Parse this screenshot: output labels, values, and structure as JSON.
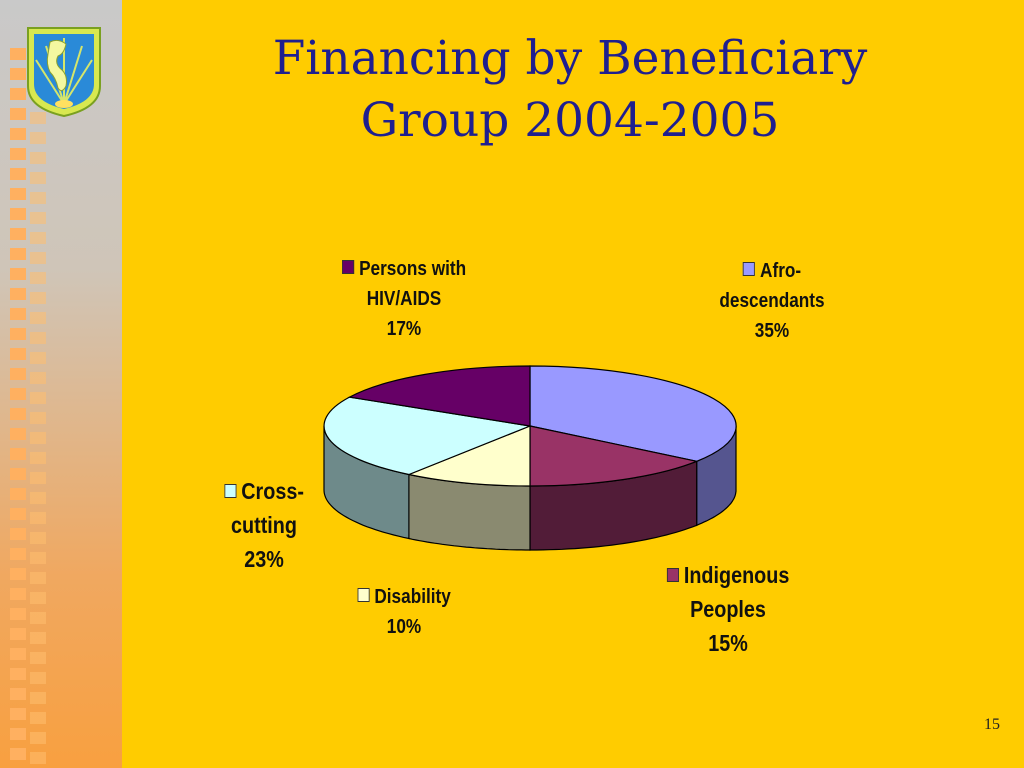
{
  "slide": {
    "title_line1": "Financing by Beneficiary",
    "title_line2": "Group  2004-2005",
    "page_number": "15"
  },
  "colors": {
    "background": "#ffcc00",
    "title": "#1f1f8f"
  },
  "icons": {
    "logo": "americas-globe-logo"
  },
  "chart_data": {
    "type": "pie",
    "style": "3d",
    "title": "",
    "slices": [
      {
        "label_lines": [
          "Afro-",
          "descendants"
        ],
        "percent_label": "35%",
        "value": 35,
        "color": "#9999ff",
        "side": "#55558f"
      },
      {
        "label_lines": [
          "Indigenous",
          "Peoples"
        ],
        "percent_label": "15%",
        "value": 15,
        "color": "#993366",
        "side": "#521c38"
      },
      {
        "label_lines": [
          "Disability"
        ],
        "percent_label": "10%",
        "value": 10,
        "color": "#ffffcc",
        "side": "#8a8a70"
      },
      {
        "label_lines": [
          "Cross-",
          "cutting"
        ],
        "percent_label": "23%",
        "value": 23,
        "color": "#ccffff",
        "side": "#6e8a8a"
      },
      {
        "label_lines": [
          "Persons with",
          "HIV/AIDS"
        ],
        "percent_label": "17%",
        "value": 17,
        "color": "#660066",
        "side": "#380038"
      }
    ]
  }
}
